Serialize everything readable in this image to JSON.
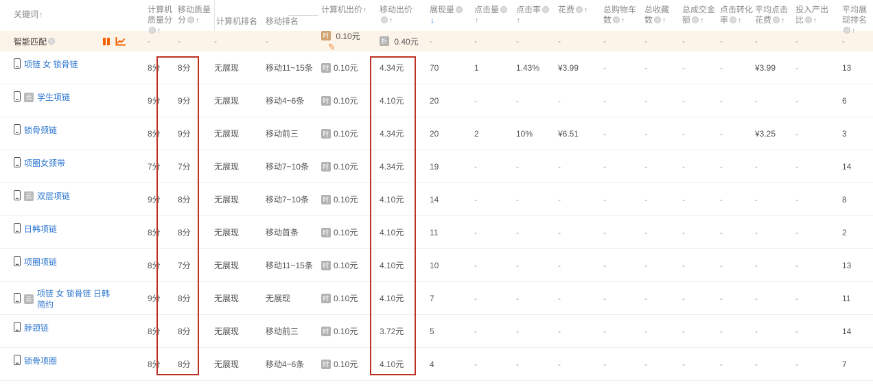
{
  "colors": {
    "accent_orange": "#f66000",
    "link_blue": "#2e77d0",
    "smart_row_bg": "#fcf4e8",
    "red_box": "#bd3124",
    "sort_active_blue": "#2d84e0",
    "header_gray": "#8b8b8b"
  },
  "icons": {
    "sort_up": "↑",
    "sort_down": "↓",
    "edit": "✎",
    "keyword_badge": "云",
    "pc_bid_badge": "时",
    "mobile_bid_badge": "折"
  },
  "table": {
    "headers": [
      {
        "id": "keyword",
        "label": "关键词",
        "circle": false,
        "sort": "up"
      },
      {
        "id": "pc_quality",
        "label": "计算机质量分",
        "circle": true,
        "sort": "up"
      },
      {
        "id": "mobile_quality",
        "label": "移动质量分",
        "circle": true,
        "sort": "up"
      },
      {
        "id": "pc_rank",
        "label": "计算机排名",
        "circle": false,
        "sort": null
      },
      {
        "id": "mobile_rank",
        "label": "移动排名",
        "circle": false,
        "sort": null
      },
      {
        "id": "pc_bid",
        "label": "计算机出价",
        "circle": false,
        "sort": "up"
      },
      {
        "id": "mobile_bid",
        "label": "移动出价",
        "circle": true,
        "sort": "up"
      },
      {
        "id": "impressions",
        "label": "展现量",
        "circle": true,
        "sort": "down_active"
      },
      {
        "id": "clicks",
        "label": "点击量",
        "circle": true,
        "sort": "up"
      },
      {
        "id": "ctr",
        "label": "点击率",
        "circle": true,
        "sort": "up"
      },
      {
        "id": "cost",
        "label": "花费",
        "circle": true,
        "sort": "up"
      },
      {
        "id": "cart_total",
        "label": "总购物车数",
        "circle": true,
        "sort": "up"
      },
      {
        "id": "fav_total",
        "label": "总收藏数",
        "circle": true,
        "sort": "up"
      },
      {
        "id": "gmv_total",
        "label": "总成交金额",
        "circle": true,
        "sort": "up"
      },
      {
        "id": "cvr",
        "label": "点击转化率",
        "circle": true,
        "sort": "up"
      },
      {
        "id": "avg_cpc",
        "label": "平均点击花费",
        "circle": true,
        "sort": "up"
      },
      {
        "id": "roi",
        "label": "投入产出比",
        "circle": true,
        "sort": "up"
      },
      {
        "id": "avg_rank",
        "label": "平均展现排名",
        "circle": true,
        "sort": "up"
      }
    ],
    "smart_row": {
      "label": "智能匹配",
      "pc_bid": "0.10元",
      "mobile_bid": "0.40元",
      "dash": "-"
    },
    "rows": [
      {
        "keyword": "项链 女 锁骨链",
        "has_badge": false,
        "values": [
          "8分",
          "8分",
          "无展现",
          "移动11~15条",
          "0.10元",
          "4.34元",
          "70",
          "1",
          "1.43%",
          "¥3.99",
          "-",
          "-",
          "-",
          "-",
          "¥3.99",
          "-",
          "13"
        ]
      },
      {
        "keyword": "学生项链",
        "has_badge": true,
        "values": [
          "9分",
          "9分",
          "无展现",
          "移动4~6条",
          "0.10元",
          "4.10元",
          "20",
          "-",
          "-",
          "-",
          "-",
          "-",
          "-",
          "-",
          "-",
          "-",
          "6"
        ]
      },
      {
        "keyword": "锁骨颈链",
        "has_badge": false,
        "values": [
          "8分",
          "9分",
          "无展现",
          "移动前三",
          "0.10元",
          "4.34元",
          "20",
          "2",
          "10%",
          "¥6.51",
          "-",
          "-",
          "-",
          "-",
          "¥3.25",
          "-",
          "3"
        ]
      },
      {
        "keyword": "项圈女颈带",
        "has_badge": false,
        "values": [
          "7分",
          "7分",
          "无展现",
          "移动7~10条",
          "0.10元",
          "4.34元",
          "19",
          "-",
          "-",
          "-",
          "-",
          "-",
          "-",
          "-",
          "-",
          "-",
          "14"
        ]
      },
      {
        "keyword": "双层项链",
        "has_badge": true,
        "values": [
          "9分",
          "8分",
          "无展现",
          "移动7~10条",
          "0.10元",
          "4.10元",
          "14",
          "-",
          "-",
          "-",
          "-",
          "-",
          "-",
          "-",
          "-",
          "-",
          "8"
        ]
      },
      {
        "keyword": "日韩项链",
        "has_badge": false,
        "values": [
          "8分",
          "8分",
          "无展现",
          "移动首条",
          "0.10元",
          "4.10元",
          "11",
          "-",
          "-",
          "-",
          "-",
          "-",
          "-",
          "-",
          "-",
          "-",
          "2"
        ]
      },
      {
        "keyword": "项圈项链",
        "has_badge": false,
        "values": [
          "8分",
          "7分",
          "无展现",
          "移动11~15条",
          "0.10元",
          "4.10元",
          "10",
          "-",
          "-",
          "-",
          "-",
          "-",
          "-",
          "-",
          "-",
          "-",
          "13"
        ]
      },
      {
        "keyword": "项链 女 锁骨链 日韩 简约",
        "has_badge": true,
        "values": [
          "9分",
          "8分",
          "无展现",
          "无展现",
          "0.10元",
          "4.10元",
          "7",
          "-",
          "-",
          "-",
          "-",
          "-",
          "-",
          "-",
          "-",
          "-",
          "11"
        ]
      },
      {
        "keyword": "脖颈链",
        "has_badge": false,
        "values": [
          "8分",
          "8分",
          "无展现",
          "移动前三",
          "0.10元",
          "3.72元",
          "5",
          "-",
          "-",
          "-",
          "-",
          "-",
          "-",
          "-",
          "-",
          "-",
          "14"
        ]
      },
      {
        "keyword": "锁骨项圈",
        "has_badge": false,
        "values": [
          "8分",
          "8分",
          "无展现",
          "移动4~6条",
          "0.10元",
          "4.10元",
          "4",
          "-",
          "-",
          "-",
          "-",
          "-",
          "-",
          "-",
          "-",
          "-",
          "7"
        ]
      }
    ]
  }
}
